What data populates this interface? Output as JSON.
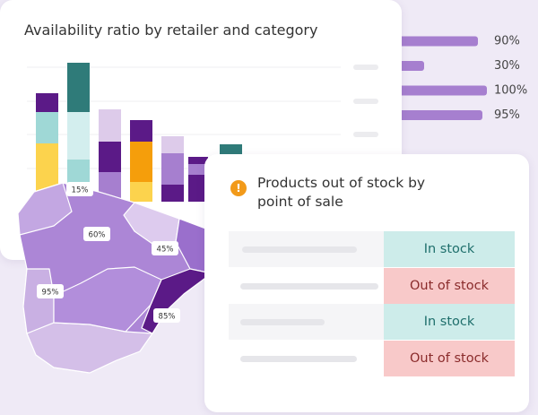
{
  "availability_card": {
    "title": "Availability ratio by retailer and category",
    "chart": {
      "type": "stacked-bar",
      "bars": [
        {
          "segments": [
            {
              "color": "#fcd34d",
              "value": 65
            },
            {
              "color": "#9fd8d6",
              "value": 35
            },
            {
              "color": "#5b1a87",
              "value": 21
            }
          ]
        },
        {
          "segments": [
            {
              "color": "#9fd8d6",
              "value": 47
            },
            {
              "color": "#d3eeee",
              "value": 53
            },
            {
              "color": "#2f7b79",
              "value": 55
            }
          ]
        },
        {
          "segments": [
            {
              "color": "#a67fcf",
              "value": 33
            },
            {
              "color": "#5b1a87",
              "value": 34
            },
            {
              "color": "#ddcbea",
              "value": 36
            }
          ]
        },
        {
          "segments": [
            {
              "color": "#fcd34d",
              "value": 22
            },
            {
              "color": "#f59e0b",
              "value": 45
            },
            {
              "color": "#5b1a87",
              "value": 24
            }
          ]
        },
        {
          "segments": [
            {
              "color": "#5b1a87",
              "value": 19
            },
            {
              "color": "#a67fcf",
              "value": 35
            },
            {
              "color": "#ddcbea",
              "value": 19
            }
          ]
        },
        {
          "segments": [
            {
              "color": "#5b1a87",
              "value": 30
            },
            {
              "color": "#a67fcf",
              "value": 12
            },
            {
              "color": "#5b1a87",
              "value": 8
            }
          ]
        },
        {
          "segments": [
            {
              "color": "#2f7b79",
              "value": 64
            }
          ]
        }
      ]
    }
  },
  "ratio_bars": [
    {
      "value": 90,
      "label": "90%"
    },
    {
      "value": 30,
      "label": "30%"
    },
    {
      "value": 100,
      "label": "100%"
    },
    {
      "value": 95,
      "label": "95%"
    }
  ],
  "ratio_bar_color": "#a67fcf",
  "map": {
    "regions": [
      {
        "value": 15,
        "label": "15%"
      },
      {
        "value": 60,
        "label": "60%"
      },
      {
        "value": 45,
        "label": "45%"
      },
      {
        "value": 95,
        "label": "95%"
      },
      {
        "value": 85,
        "label": "85%"
      }
    ]
  },
  "stock_card": {
    "icon": "!",
    "title": "Products out of stock by point of sale",
    "rows": [
      {
        "status": "In stock",
        "color": "#cdecea",
        "text_color": "#1f6f6c"
      },
      {
        "status": "Out of stock",
        "color": "#f8c9c9",
        "text_color": "#8a2b2b"
      },
      {
        "status": "In stock",
        "color": "#cdecea",
        "text_color": "#1f6f6c"
      },
      {
        "status": "Out of stock",
        "color": "#f8c9c9",
        "text_color": "#8a2b2b"
      }
    ]
  }
}
